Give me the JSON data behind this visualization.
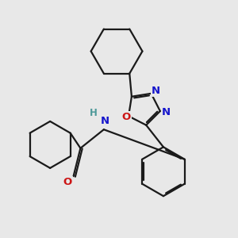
{
  "bg_color": "#e8e8e8",
  "bond_color": "#1a1a1a",
  "bond_width": 1.6,
  "atom_colors": {
    "N": "#1515cc",
    "O": "#cc1515",
    "H": "#4d9999",
    "C": "#1a1a1a"
  },
  "font_size_atom": 8.5
}
